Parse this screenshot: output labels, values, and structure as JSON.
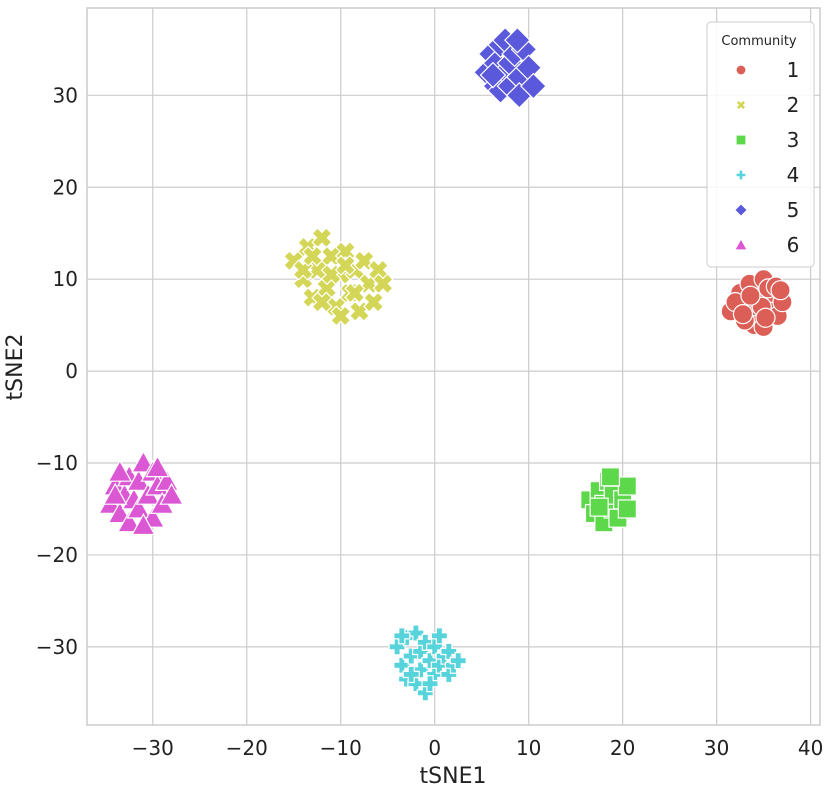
{
  "chart_data": {
    "type": "scatter",
    "title": "",
    "xlabel": "tSNE1",
    "ylabel": "tSNE2",
    "xlim": [
      -37,
      41
    ],
    "ylim": [
      -38.5,
      39.5
    ],
    "xticks": [
      -30,
      -20,
      -10,
      0,
      10,
      20,
      30,
      40
    ],
    "yticks": [
      -30,
      -20,
      -10,
      0,
      10,
      20,
      30
    ],
    "xtick_labels": [
      "−30",
      "−20",
      "−10",
      "0",
      "10",
      "20",
      "30",
      "40"
    ],
    "ytick_labels": [
      "−30",
      "−20",
      "−10",
      "0",
      "10",
      "20",
      "30"
    ],
    "grid": true,
    "legend": {
      "title": "Community",
      "position": "top-right"
    },
    "series": [
      {
        "name": "1",
        "marker": "circle",
        "color": "#db5f57",
        "points": [
          [
            31.5,
            6.5
          ],
          [
            32.5,
            8.5
          ],
          [
            33,
            7
          ],
          [
            33.5,
            9.5
          ],
          [
            34,
            6
          ],
          [
            34.5,
            8
          ],
          [
            35,
            10
          ],
          [
            35.5,
            7
          ],
          [
            36,
            8.5
          ],
          [
            36.5,
            6
          ],
          [
            37,
            7.5
          ],
          [
            34,
            5
          ],
          [
            35,
            4.8
          ],
          [
            33,
            5.5
          ],
          [
            32,
            7.5
          ],
          [
            35.5,
            9
          ],
          [
            36.3,
            9.2
          ],
          [
            34.8,
            7
          ],
          [
            33.6,
            8.2
          ],
          [
            32.8,
            6.2
          ],
          [
            36.8,
            8.8
          ],
          [
            35.2,
            5.8
          ]
        ]
      },
      {
        "name": "2",
        "marker": "x",
        "color": "#d3d656",
        "points": [
          [
            -15,
            12
          ],
          [
            -14,
            10
          ],
          [
            -13.5,
            13.5
          ],
          [
            -13,
            8
          ],
          [
            -12.5,
            11
          ],
          [
            -12,
            14.5
          ],
          [
            -11.5,
            9
          ],
          [
            -11,
            12.5
          ],
          [
            -10.5,
            7
          ],
          [
            -10,
            10.5
          ],
          [
            -9.5,
            13
          ],
          [
            -9,
            8.5
          ],
          [
            -8.5,
            11
          ],
          [
            -8,
            6.5
          ],
          [
            -7.5,
            12
          ],
          [
            -7,
            9.5
          ],
          [
            -6.5,
            7.5
          ],
          [
            -6,
            11
          ],
          [
            -5.5,
            9.5
          ],
          [
            -10,
            6
          ],
          [
            -12,
            7.5
          ],
          [
            -14,
            11
          ],
          [
            -8.5,
            8.5
          ],
          [
            -11,
            10.5
          ],
          [
            -9.5,
            11.5
          ],
          [
            -13,
            12.5
          ]
        ]
      },
      {
        "name": "3",
        "marker": "square",
        "color": "#5ed84b",
        "points": [
          [
            16.5,
            -14
          ],
          [
            17,
            -15.5
          ],
          [
            17.5,
            -13
          ],
          [
            18,
            -16.5
          ],
          [
            18,
            -14.5
          ],
          [
            18.5,
            -12
          ],
          [
            19,
            -15
          ],
          [
            19,
            -13.5
          ],
          [
            19.5,
            -16
          ],
          [
            20,
            -14
          ],
          [
            20.5,
            -12.5
          ],
          [
            20.5,
            -15
          ],
          [
            17.5,
            -14.8
          ],
          [
            18.7,
            -11.5
          ]
        ]
      },
      {
        "name": "4",
        "marker": "plus",
        "color": "#57d3db",
        "points": [
          [
            -4,
            -30
          ],
          [
            -3.5,
            -32
          ],
          [
            -3,
            -29
          ],
          [
            -3,
            -33.5
          ],
          [
            -2.5,
            -31
          ],
          [
            -2,
            -28.5
          ],
          [
            -2,
            -34
          ],
          [
            -1.5,
            -30.5
          ],
          [
            -1.5,
            -32.5
          ],
          [
            -1,
            -29.5
          ],
          [
            -1,
            -35
          ],
          [
            -0.5,
            -31.5
          ],
          [
            0,
            -30
          ],
          [
            0,
            -33
          ],
          [
            0.5,
            -28.8
          ],
          [
            0.5,
            -32
          ],
          [
            1,
            -31
          ],
          [
            1.5,
            -30.5
          ],
          [
            1.5,
            -33
          ],
          [
            2,
            -32
          ],
          [
            -3.5,
            -28.8
          ],
          [
            -0.5,
            -34
          ],
          [
            2.5,
            -31.5
          ],
          [
            -2.5,
            -33
          ]
        ]
      },
      {
        "name": "5",
        "marker": "diamond",
        "color": "#5a58db",
        "points": [
          [
            5.5,
            32.5
          ],
          [
            6,
            34.5
          ],
          [
            6.5,
            31
          ],
          [
            6.5,
            33.5
          ],
          [
            7,
            35.5
          ],
          [
            7,
            30.5
          ],
          [
            7.5,
            32.5
          ],
          [
            7.5,
            36
          ],
          [
            8,
            33.5
          ],
          [
            8,
            31
          ],
          [
            8.5,
            34.5
          ],
          [
            9,
            32
          ],
          [
            9,
            30
          ],
          [
            9.5,
            35
          ],
          [
            10,
            33
          ],
          [
            10.5,
            31
          ],
          [
            6.2,
            32.2
          ],
          [
            8.8,
            36
          ]
        ]
      },
      {
        "name": "6",
        "marker": "triangle",
        "color": "#db57d3",
        "points": [
          [
            -34.5,
            -14.5
          ],
          [
            -34,
            -12.5
          ],
          [
            -33.5,
            -15.5
          ],
          [
            -33,
            -13.5
          ],
          [
            -32.5,
            -11.5
          ],
          [
            -32.5,
            -16.5
          ],
          [
            -32,
            -14
          ],
          [
            -31.5,
            -12
          ],
          [
            -31.5,
            -15
          ],
          [
            -31,
            -10
          ],
          [
            -30.5,
            -13.5
          ],
          [
            -30,
            -16
          ],
          [
            -30,
            -11
          ],
          [
            -29.5,
            -12.5
          ],
          [
            -29,
            -14.5
          ],
          [
            -28.5,
            -12
          ],
          [
            -28,
            -13.5
          ],
          [
            -29.5,
            -10.5
          ],
          [
            -33.5,
            -11
          ],
          [
            -31,
            -16.8
          ],
          [
            -34,
            -13.5
          ]
        ]
      }
    ]
  }
}
